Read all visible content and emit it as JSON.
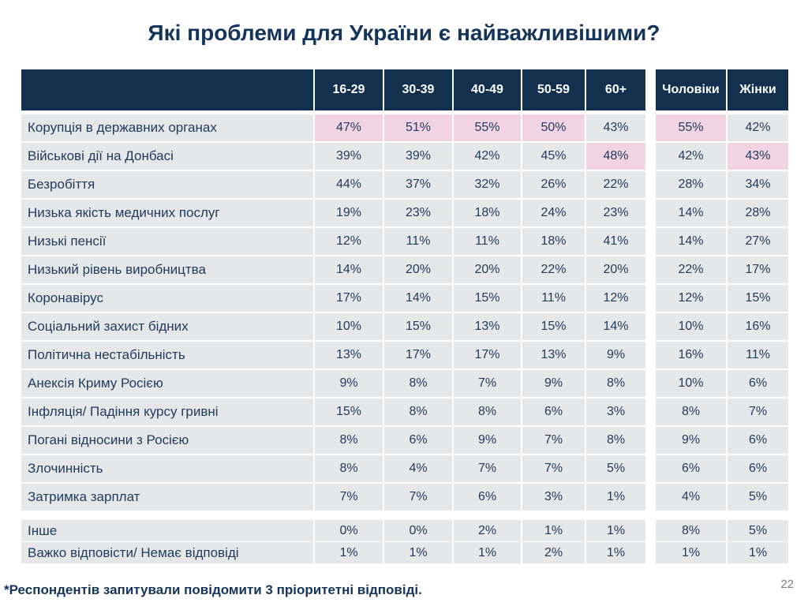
{
  "slide": {
    "footnote": "*Респондентів запитували повідомити 3 пріоритетні відповіді.",
    "page_number": "22"
  },
  "colors": {
    "header_bg": "#13304E",
    "cell_bg": "#E6E7E8",
    "highlight_bg": "#F2D3E2",
    "text": "#1D3A5F",
    "title": "#153459",
    "footnote": "#153459",
    "page_number": "#7F7F7F"
  },
  "chart_data": {
    "type": "table",
    "title": "Які проблеми для України є найважливішими?",
    "columns": [
      "16-29",
      "30-39",
      "40-49",
      "50-59",
      "60+",
      "Чоловіки",
      "Жінки"
    ],
    "legend_note": "pink cells = highlighted top values",
    "rows": [
      {
        "label": "Корупція в державних органах",
        "values": [
          "47%",
          "51%",
          "55%",
          "50%",
          "43%",
          "55%",
          "42%"
        ],
        "highlights": [
          0,
          1,
          2,
          3,
          5
        ]
      },
      {
        "label": "Військові дії на Донбасі",
        "values": [
          "39%",
          "39%",
          "42%",
          "45%",
          "48%",
          "42%",
          "43%"
        ],
        "highlights": [
          4,
          6
        ]
      },
      {
        "label": "Безробіття",
        "values": [
          "44%",
          "37%",
          "32%",
          "26%",
          "22%",
          "28%",
          "34%"
        ],
        "highlights": []
      },
      {
        "label": "Низька якість медичних послуг",
        "values": [
          "19%",
          "23%",
          "18%",
          "24%",
          "23%",
          "14%",
          "28%"
        ],
        "highlights": []
      },
      {
        "label": "Низькі пенсії",
        "values": [
          "12%",
          "11%",
          "11%",
          "18%",
          "41%",
          "14%",
          "27%"
        ],
        "highlights": []
      },
      {
        "label": "Низький рівень виробництва",
        "values": [
          "14%",
          "20%",
          "20%",
          "22%",
          "20%",
          "22%",
          "17%"
        ],
        "highlights": []
      },
      {
        "label": "Коронавірус",
        "values": [
          "17%",
          "14%",
          "15%",
          "11%",
          "12%",
          "12%",
          "15%"
        ],
        "highlights": []
      },
      {
        "label": "Соціальний захист бідних",
        "values": [
          "10%",
          "15%",
          "13%",
          "15%",
          "14%",
          "10%",
          "16%"
        ],
        "highlights": []
      },
      {
        "label": "Політична нестабільність",
        "values": [
          "13%",
          "17%",
          "17%",
          "13%",
          "9%",
          "16%",
          "11%"
        ],
        "highlights": []
      },
      {
        "label": "Анексія Криму Росією",
        "values": [
          "9%",
          "8%",
          "7%",
          "9%",
          "8%",
          "10%",
          "6%"
        ],
        "highlights": []
      },
      {
        "label": "Інфляція/ Падіння курсу гривні",
        "values": [
          "15%",
          "8%",
          "8%",
          "6%",
          "3%",
          "8%",
          "7%"
        ],
        "highlights": []
      },
      {
        "label": "Погані відносини з Росією",
        "values": [
          "8%",
          "6%",
          "9%",
          "7%",
          "8%",
          "9%",
          "6%"
        ],
        "highlights": []
      },
      {
        "label": "Злочинність",
        "values": [
          "8%",
          "4%",
          "7%",
          "7%",
          "5%",
          "6%",
          "6%"
        ],
        "highlights": []
      },
      {
        "label": "Затримка зарплат",
        "values": [
          "7%",
          "7%",
          "6%",
          "3%",
          "1%",
          "4%",
          "5%"
        ],
        "highlights": []
      }
    ],
    "footer_rows": [
      {
        "label": "Інше",
        "values": [
          "0%",
          "0%",
          "2%",
          "1%",
          "1%",
          "8%",
          "5%"
        ],
        "highlights": []
      },
      {
        "label": "Важко відповісти/ Немає відповіді",
        "values": [
          "1%",
          "1%",
          "1%",
          "2%",
          "1%",
          "1%",
          "1%"
        ],
        "highlights": []
      }
    ]
  }
}
